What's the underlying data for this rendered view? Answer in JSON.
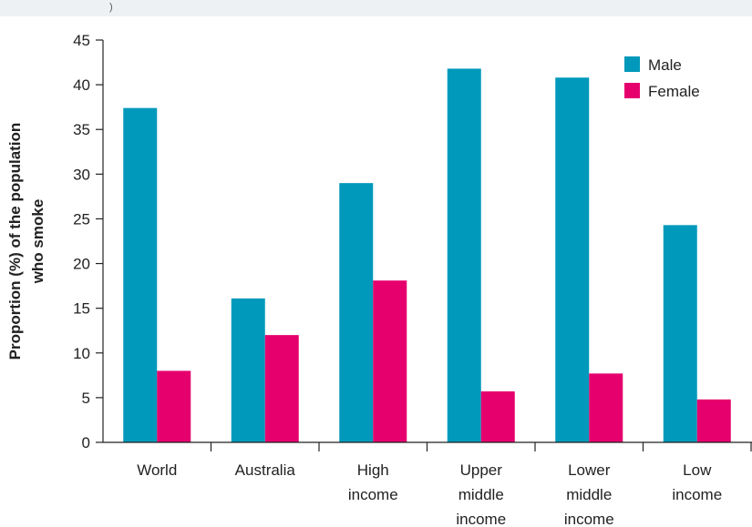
{
  "header": {
    "fragment": ")"
  },
  "chart_data": {
    "type": "bar",
    "title": "",
    "xlabel": "",
    "ylabel": [
      "Proportion (%) of the population",
      "who smoke"
    ],
    "ylim": [
      0,
      45
    ],
    "yticks": [
      0,
      5,
      10,
      15,
      20,
      25,
      30,
      35,
      40,
      45
    ],
    "categories": [
      [
        "World"
      ],
      [
        "Australia"
      ],
      [
        "High",
        "income"
      ],
      [
        "Upper",
        "middle",
        "income"
      ],
      [
        "Lower",
        "middle",
        "income"
      ],
      [
        "Low",
        "income"
      ]
    ],
    "series": [
      {
        "name": "Male",
        "color": "#0099bb",
        "values": [
          37.4,
          16.1,
          29.0,
          41.8,
          40.8,
          24.3
        ]
      },
      {
        "name": "Female",
        "color": "#e6006e",
        "values": [
          8.0,
          12.0,
          18.1,
          5.7,
          7.7,
          4.8
        ]
      }
    ],
    "legend": {
      "position": "top-right"
    },
    "grid": false
  }
}
